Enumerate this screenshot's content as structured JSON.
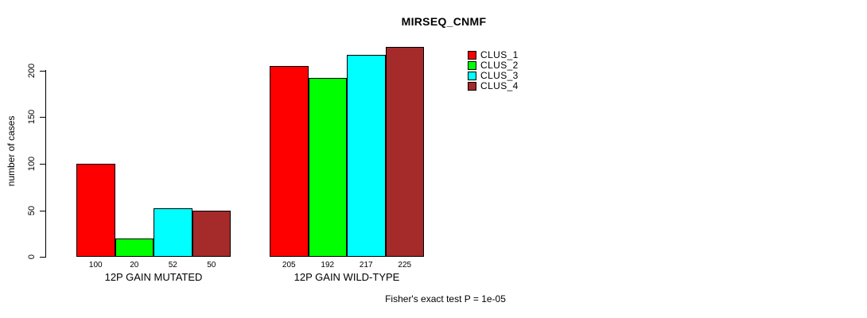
{
  "chart_data": {
    "type": "bar",
    "title": "MIRSEQ_CNMF",
    "ylabel": "number of cases",
    "xlabel": "",
    "ylim": [
      0,
      230
    ],
    "yticks": [
      0,
      50,
      100,
      150,
      200
    ],
    "categories": [
      "12P GAIN MUTATED",
      "12P GAIN WILD-TYPE"
    ],
    "series": [
      {
        "name": "CLUS_1",
        "color": "#ff0000",
        "values": [
          100,
          205
        ]
      },
      {
        "name": "CLUS_2",
        "color": "#00ff00",
        "values": [
          20,
          192
        ]
      },
      {
        "name": "CLUS_3",
        "color": "#00ffff",
        "values": [
          52,
          217
        ]
      },
      {
        "name": "CLUS_4",
        "color": "#a52a2a",
        "values": [
          50,
          225
        ]
      }
    ],
    "bar_value_labels": [
      [
        "100",
        "20",
        "52",
        "50"
      ],
      [
        "205",
        "192",
        "217",
        "225"
      ]
    ],
    "legend_position": "top-right",
    "grid": false,
    "annotation": "Fisher's exact test P = 1e-05"
  }
}
